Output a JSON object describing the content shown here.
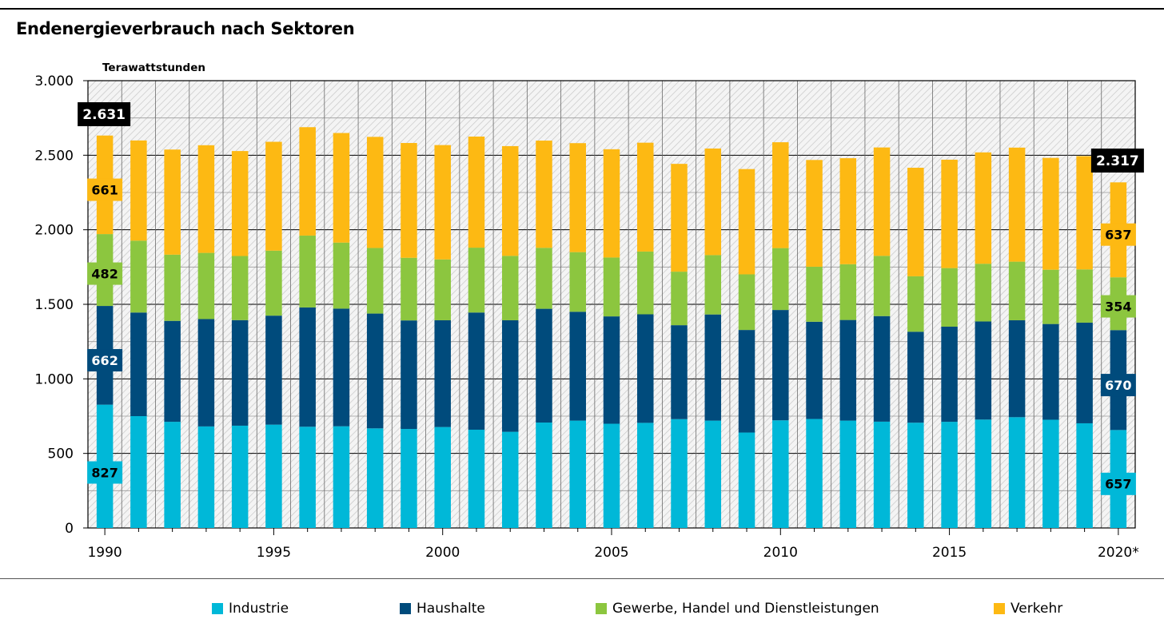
{
  "chart_data": {
    "type": "bar",
    "stacked": true,
    "title": "Endenergieverbrauch nach Sektoren",
    "ylabel": "Terawattstunden",
    "ylim": [
      0,
      3000
    ],
    "yticks": [
      0,
      500,
      1000,
      1500,
      2000,
      2500,
      3000
    ],
    "ytick_labels": [
      "0",
      "500",
      "1.000",
      "1.500",
      "2.000",
      "2.500",
      "3.000"
    ],
    "x_tick_labels": [
      "1990",
      "1995",
      "2000",
      "2005",
      "2010",
      "2015",
      "2020*"
    ],
    "years": [
      1990,
      1991,
      1992,
      1993,
      1994,
      1995,
      1996,
      1997,
      1998,
      1999,
      2000,
      2001,
      2002,
      2003,
      2004,
      2005,
      2006,
      2007,
      2008,
      2009,
      2010,
      2011,
      2012,
      2013,
      2014,
      2015,
      2016,
      2017,
      2018,
      2019,
      2020
    ],
    "series": [
      {
        "name": "Industrie",
        "color": "#00b8d8",
        "values": [
          827,
          750,
          712,
          681,
          686,
          693,
          679,
          682,
          668,
          664,
          677,
          659,
          645,
          707,
          720,
          699,
          705,
          730,
          720,
          640,
          722,
          731,
          720,
          713,
          706,
          712,
          727,
          743,
          726,
          702,
          657
        ]
      },
      {
        "name": "Haushalte",
        "color": "#004b7c",
        "values": [
          662,
          695,
          677,
          720,
          708,
          731,
          800,
          789,
          770,
          728,
          716,
          786,
          748,
          763,
          730,
          720,
          728,
          630,
          712,
          688,
          740,
          652,
          675,
          708,
          610,
          638,
          658,
          650,
          642,
          675,
          670
        ]
      },
      {
        "name": "Gewerbe, Handel und Dienstleistungen",
        "color": "#8cc63f",
        "values": [
          482,
          482,
          444,
          444,
          430,
          436,
          482,
          443,
          440,
          420,
          408,
          435,
          432,
          409,
          400,
          395,
          421,
          359,
          398,
          373,
          415,
          369,
          374,
          404,
          372,
          393,
          387,
          393,
          364,
          357,
          354
        ]
      },
      {
        "name": "Verkehr",
        "color": "#fdb913",
        "values": [
          661,
          672,
          705,
          722,
          704,
          730,
          727,
          735,
          745,
          770,
          767,
          745,
          736,
          719,
          731,
          726,
          730,
          723,
          715,
          706,
          710,
          716,
          711,
          727,
          728,
          727,
          747,
          765,
          750,
          760,
          637
        ]
      }
    ],
    "totals": {
      "1990": "2.631",
      "2020": "2.317"
    },
    "data_labels": {
      "1990": [
        "827",
        "662",
        "482",
        "661"
      ],
      "2020": [
        "657",
        "670",
        "354",
        "637"
      ]
    },
    "grid": true,
    "legend_position": "bottom"
  }
}
